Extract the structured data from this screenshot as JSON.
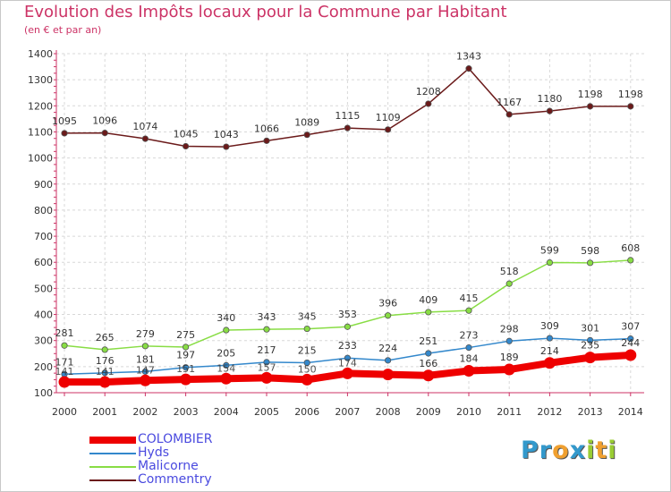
{
  "title": "Evolution des Impôts locaux pour la Commune par Habitant",
  "subtitle": "(en € et par an)",
  "logo": {
    "text": "Proxiti",
    "letters": [
      {
        "ch": "P",
        "color": "#3399cc"
      },
      {
        "ch": "r",
        "color": "#3399cc"
      },
      {
        "ch": "o",
        "color": "#f0a030"
      },
      {
        "ch": "x",
        "color": "#3399cc"
      },
      {
        "ch": "i",
        "color": "#99cc33"
      },
      {
        "ch": "t",
        "color": "#f0a030"
      },
      {
        "ch": "i",
        "color": "#99cc33"
      }
    ]
  },
  "chart_data": {
    "type": "line",
    "title": "Evolution des Impôts locaux pour la Commune par Habitant",
    "ylabel": "(en € et par an)",
    "xlabel": "",
    "categories": [
      "2000",
      "2001",
      "2002",
      "2003",
      "2004",
      "2005",
      "2006",
      "2007",
      "2008",
      "2009",
      "2010",
      "2011",
      "2012",
      "2013",
      "2014"
    ],
    "ylim": [
      100,
      1400
    ],
    "yticks": [
      100,
      200,
      300,
      400,
      500,
      600,
      700,
      800,
      900,
      1000,
      1100,
      1200,
      1300,
      1400
    ],
    "grid": true,
    "legend_position": "bottom-left",
    "series": [
      {
        "name": "COLOMBIER",
        "color": "#ee0000",
        "emphasis": true,
        "values": [
          141,
          141,
          147,
          151,
          154,
          157,
          150,
          174,
          170,
          166,
          184,
          189,
          214,
          235,
          244
        ],
        "labels": [
          false,
          false,
          false,
          false,
          false,
          false,
          false,
          false,
          false,
          true,
          true,
          true,
          true,
          true,
          true
        ]
      },
      {
        "name": "Hyds",
        "color": "#3388cc",
        "emphasis": false,
        "values": [
          171,
          176,
          181,
          197,
          205,
          217,
          215,
          233,
          224,
          251,
          273,
          298,
          309,
          301,
          307
        ],
        "labels": [
          true,
          true,
          true,
          true,
          true,
          true,
          true,
          true,
          true,
          true,
          true,
          true,
          true,
          true,
          true
        ]
      },
      {
        "name": "Malicorne",
        "color": "#88dd44",
        "emphasis": false,
        "values": [
          281,
          265,
          279,
          275,
          340,
          343,
          345,
          353,
          396,
          409,
          415,
          518,
          599,
          598,
          608
        ],
        "labels": [
          true,
          true,
          true,
          true,
          true,
          true,
          true,
          true,
          true,
          true,
          true,
          true,
          true,
          true,
          true
        ]
      },
      {
        "name": "Commentry",
        "color": "#6b1a1a",
        "emphasis": false,
        "values": [
          1095,
          1096,
          1074,
          1045,
          1043,
          1066,
          1089,
          1115,
          1109,
          1208,
          1343,
          1167,
          1180,
          1198,
          1198
        ],
        "labels": [
          true,
          true,
          true,
          true,
          true,
          true,
          true,
          true,
          true,
          true,
          true,
          true,
          true,
          true,
          true
        ]
      }
    ],
    "overlay_labels": [
      {
        "series": 0,
        "index": 0,
        "text": "141"
      },
      {
        "series": 0,
        "index": 1,
        "text": "141"
      },
      {
        "series": 0,
        "index": 2,
        "text": "147"
      },
      {
        "series": 0,
        "index": 3,
        "text": "151"
      },
      {
        "series": 0,
        "index": 4,
        "text": "154"
      },
      {
        "series": 0,
        "index": 5,
        "text": "157"
      },
      {
        "series": 0,
        "index": 6,
        "text": "150"
      },
      {
        "series": 0,
        "index": 7,
        "text": "174"
      }
    ]
  }
}
